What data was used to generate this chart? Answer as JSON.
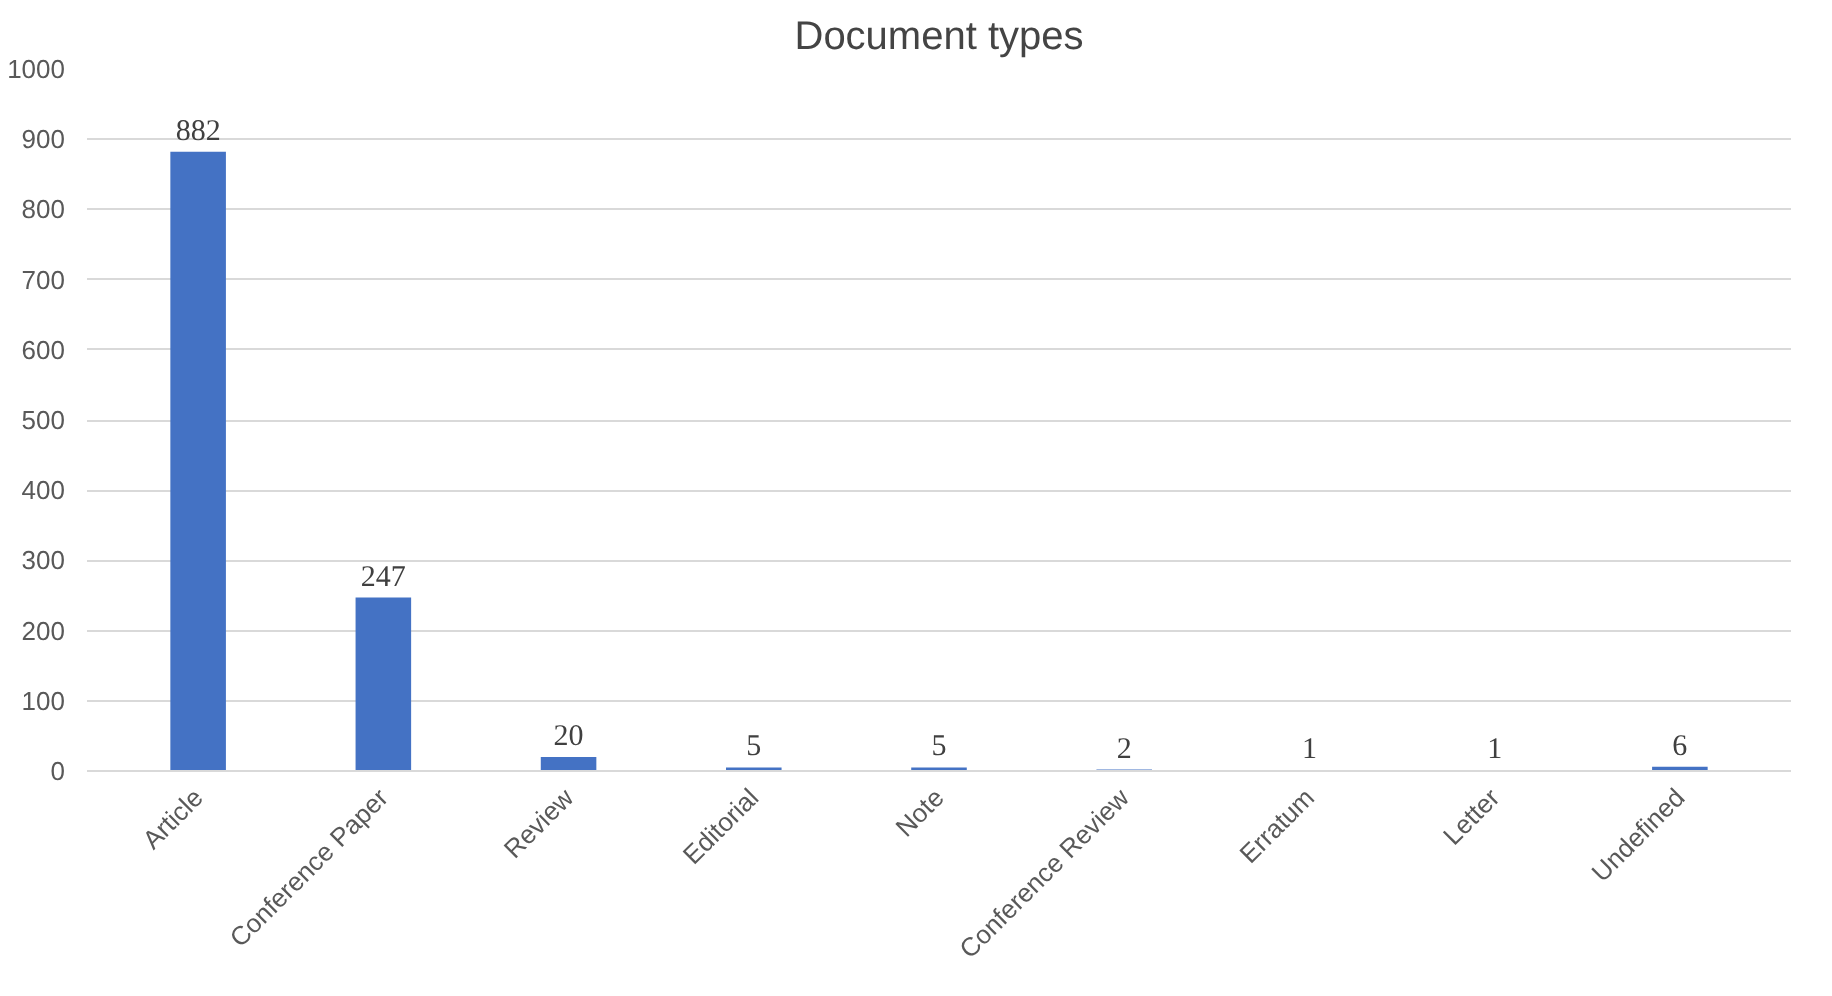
{
  "chart_data": {
    "type": "bar",
    "title": "Document types",
    "categories": [
      "Article",
      "Conference Paper",
      "Review",
      "Editorial",
      "Note",
      "Conference Review",
      "Erratum",
      "Letter",
      "Undefined"
    ],
    "values": [
      882,
      247,
      20,
      5,
      5,
      2,
      1,
      1,
      6
    ],
    "color": "#4472c4",
    "ylim": [
      0,
      1000
    ],
    "yticks": [
      0,
      100,
      200,
      300,
      400,
      500,
      600,
      700,
      800,
      900,
      1000
    ],
    "grid": "y",
    "data_labels": true
  }
}
